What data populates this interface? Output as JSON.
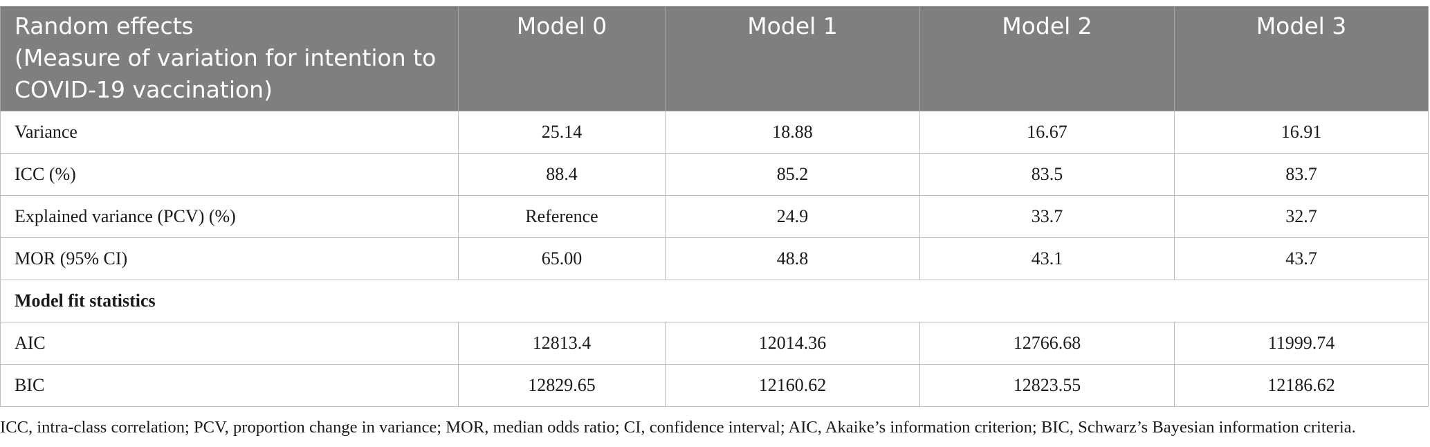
{
  "table": {
    "header": [
      "Random effects\n(Measure of variation for intention to COVID-19 vaccination)",
      "Model 0",
      "Model 1",
      "Model 2",
      "Model 3"
    ],
    "rows": [
      [
        "Variance",
        "25.14",
        "18.88",
        "16.67",
        "16.91"
      ],
      [
        "ICC (%)",
        "88.4",
        "85.2",
        "83.5",
        "83.7"
      ],
      [
        "Explained variance (PCV) (%)",
        "Reference",
        "24.9",
        "33.7",
        "32.7"
      ],
      [
        "MOR (95% CI)",
        "65.00",
        "48.8",
        "43.1",
        "43.7"
      ],
      [
        "Model fit statistics"
      ],
      [
        "AIC",
        "12813.4",
        "12014.36",
        "12766.68",
        "11999.74"
      ],
      [
        "BIC",
        "12829.65",
        "12160.62",
        "12823.55",
        "12186.62"
      ]
    ]
  },
  "footnote": "ICC, intra-class correlation; PCV, proportion change in variance; MOR, median odds ratio; CI, confidence interval; AIC, Akaike’s information criterion; BIC, Schwarz’s Bayesian information criteria."
}
